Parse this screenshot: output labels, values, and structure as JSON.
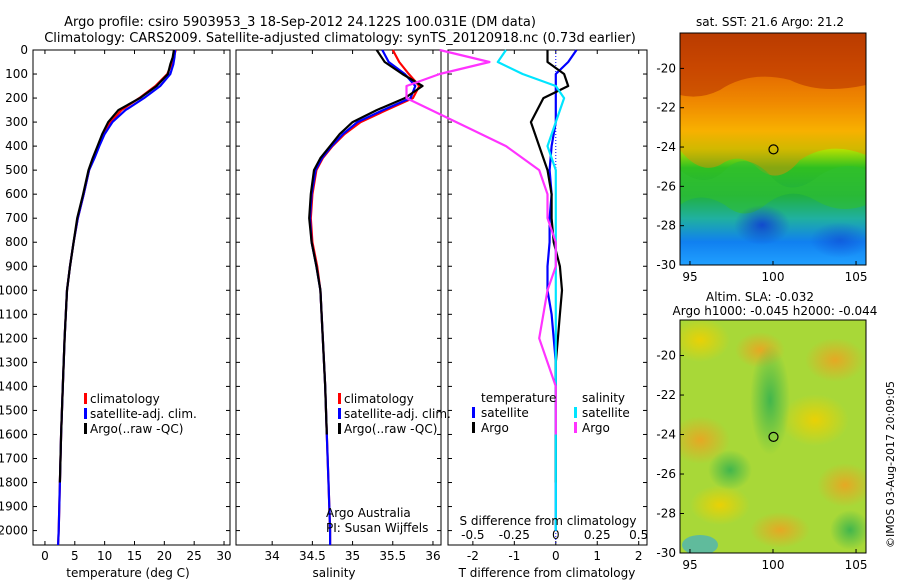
{
  "title_line1": "Argo profile: csiro 5903953_3 18-Sep-2012 24.122S 100.031E (DM data)",
  "title_line2": "Climatology: CARS2009. Satellite-adjusted climatology: synTS_20120918.nc (0.73d earlier)",
  "watermark": "©IMOS 03-Aug-2017 20:09:05",
  "colors": {
    "climatology": "#ff0000",
    "satellite": "#0000ff",
    "argo": "#000000",
    "satellite_salinity": "#00e5ff",
    "argo_salinity": "#ff33ff"
  },
  "depth_axis": {
    "ticks": [
      0,
      100,
      200,
      300,
      400,
      500,
      600,
      700,
      800,
      900,
      1000,
      1100,
      1200,
      1300,
      1400,
      1500,
      1600,
      1700,
      1800,
      1900,
      2000
    ],
    "ylim": [
      0,
      2060
    ]
  },
  "legend_main": [
    "climatology",
    "satellite-adj. clim.",
    "Argo(..raw -QC)"
  ],
  "credit_line1": "Argo Australia",
  "credit_line2": "PI: Susan Wijffels",
  "legend_diff": {
    "col1_title": "temperature",
    "col2_title": "salinity",
    "col1_items": [
      "satellite",
      "Argo"
    ],
    "col2_items": [
      "satellite",
      "Argo"
    ]
  },
  "chart_data": [
    {
      "type": "line",
      "panel": "temperature",
      "xlabel": "temperature (deg C)",
      "xlim": [
        -2,
        31
      ],
      "xticks": [
        0,
        5,
        10,
        15,
        20,
        25,
        30
      ],
      "series": [
        {
          "name": "climatology",
          "x": [
            21.9,
            21.6,
            21.2,
            20.5,
            18.5,
            15.8,
            12.8,
            11.0,
            9.8,
            9.0,
            8.2,
            7.4,
            6.5,
            5.5,
            4.8,
            4.2,
            3.7,
            3.3,
            3.0,
            2.7,
            2.5,
            2.3,
            2.2
          ],
          "y": [
            0,
            30,
            60,
            100,
            150,
            200,
            250,
            300,
            350,
            400,
            450,
            500,
            600,
            700,
            800,
            900,
            1000,
            1200,
            1400,
            1600,
            1800,
            2000,
            2060
          ]
        },
        {
          "name": "satellite-adj. clim.",
          "x": [
            21.8,
            21.7,
            21.5,
            21.0,
            19.3,
            16.6,
            13.5,
            11.3,
            10.0,
            9.1,
            8.3,
            7.4,
            6.5,
            5.5,
            4.8,
            4.2,
            3.7,
            3.3,
            3.0,
            2.7,
            2.5,
            2.3,
            2.2
          ],
          "y": [
            0,
            30,
            60,
            100,
            150,
            200,
            250,
            300,
            350,
            400,
            450,
            500,
            600,
            700,
            800,
            900,
            1000,
            1200,
            1400,
            1600,
            1800,
            2000,
            2060
          ]
        },
        {
          "name": "Argo",
          "x": [
            21.6,
            21.4,
            21.0,
            20.6,
            18.7,
            15.9,
            12.3,
            10.6,
            9.6,
            8.8,
            8.0,
            7.3,
            6.4,
            5.4,
            4.8,
            4.2,
            3.7,
            3.3,
            3.0,
            2.7,
            2.5
          ],
          "y": [
            0,
            30,
            60,
            100,
            150,
            200,
            250,
            300,
            350,
            400,
            450,
            500,
            600,
            700,
            800,
            900,
            1000,
            1200,
            1400,
            1600,
            1800
          ]
        }
      ]
    },
    {
      "type": "line",
      "panel": "salinity",
      "xlabel": "salinity",
      "xlim": [
        33.55,
        36.1
      ],
      "xticks": [
        34,
        34.5,
        35,
        35.5,
        36
      ],
      "series": [
        {
          "name": "climatology",
          "x": [
            35.5,
            35.58,
            35.7,
            35.83,
            35.75,
            35.42,
            35.1,
            34.9,
            34.75,
            34.63,
            34.55,
            34.5,
            34.48,
            34.5,
            34.56,
            34.6,
            34.63,
            34.66,
            34.68,
            34.7,
            34.72,
            34.72
          ],
          "y": [
            0,
            50,
            100,
            150,
            200,
            250,
            300,
            350,
            400,
            450,
            500,
            600,
            700,
            800,
            900,
            1000,
            1200,
            1400,
            1600,
            1800,
            2000,
            2060
          ]
        },
        {
          "name": "satellite-adj. clim.",
          "x": [
            35.37,
            35.45,
            35.65,
            35.78,
            35.72,
            35.38,
            35.06,
            34.88,
            34.74,
            34.62,
            34.54,
            34.49,
            34.47,
            34.49,
            34.55,
            34.6,
            34.63,
            34.66,
            34.68,
            34.7,
            34.72,
            34.72
          ],
          "y": [
            0,
            50,
            100,
            150,
            200,
            250,
            300,
            350,
            400,
            450,
            500,
            600,
            700,
            800,
            900,
            1000,
            1200,
            1400,
            1600,
            1800,
            2000,
            2060
          ]
        },
        {
          "name": "Argo",
          "x": [
            35.3,
            35.4,
            35.62,
            35.87,
            35.65,
            35.3,
            35.0,
            34.84,
            34.72,
            34.6,
            34.52,
            34.48,
            34.46,
            34.49,
            34.55,
            34.6,
            34.63,
            34.66,
            34.68
          ],
          "y": [
            0,
            50,
            100,
            150,
            200,
            250,
            300,
            350,
            400,
            450,
            500,
            600,
            700,
            800,
            900,
            1000,
            1200,
            1400,
            1600
          ]
        }
      ]
    },
    {
      "type": "line",
      "panel": "difference",
      "xlabel": "T difference from climatology",
      "xlabel_top": "S difference from climatology",
      "xlim": [
        -2.6,
        2.2
      ],
      "xticks": [
        -2,
        -1,
        0,
        1,
        2
      ],
      "xticks_salinity": [
        -0.5,
        -0.25,
        0,
        0.25,
        0.5
      ],
      "series": [
        {
          "name": "temperature satellite",
          "x": [
            0.5,
            0.3,
            0.0,
            0.0,
            0.0,
            0.0,
            -0.1,
            -0.15,
            -0.1,
            -0.15,
            -0.15,
            -0.2,
            -0.2,
            -0.1,
            -0.05,
            0.0,
            0.0,
            0.0,
            0.0,
            0.0
          ],
          "y": [
            0,
            50,
            100,
            150,
            200,
            300,
            400,
            500,
            600,
            700,
            800,
            900,
            1000,
            1100,
            1200,
            1300,
            1400,
            1600,
            1800,
            2000
          ]
        },
        {
          "name": "temperature Argo",
          "x": [
            -0.2,
            -0.2,
            0.2,
            0.3,
            -0.3,
            -0.6,
            -0.4,
            -0.2,
            -0.1,
            -0.1,
            -0.05,
            0.1,
            0.15,
            0.1,
            0.05,
            0.0,
            0.0,
            0.0,
            0.0
          ],
          "y": [
            0,
            50,
            100,
            150,
            200,
            300,
            400,
            500,
            600,
            700,
            800,
            900,
            1000,
            1100,
            1200,
            1300,
            1400,
            1600,
            1800
          ]
        },
        {
          "name": "salinity satellite",
          "x": [
            -0.3,
            -0.35,
            -0.2,
            0.0,
            0.05,
            0.0,
            -0.05,
            0.0,
            0.0,
            0.0,
            0.0,
            0.0,
            0.0,
            0.0,
            0.0,
            0.0,
            0.0,
            0.0
          ],
          "y": [
            0,
            50,
            100,
            150,
            200,
            300,
            400,
            500,
            600,
            700,
            800,
            900,
            1000,
            1200,
            1400,
            1600,
            1800,
            2000
          ]
        },
        {
          "name": "salinity Argo",
          "x": [
            -0.7,
            -0.4,
            -0.7,
            -0.9,
            -0.9,
            -0.6,
            -0.3,
            -0.1,
            -0.05,
            -0.05,
            0.0,
            0.0,
            -0.05,
            -0.1,
            -0.05,
            0.0,
            0.0
          ],
          "y": [
            0,
            50,
            100,
            150,
            200,
            300,
            400,
            500,
            600,
            700,
            800,
            900,
            1000,
            1200,
            1300,
            1400,
            1600
          ]
        }
      ]
    },
    {
      "type": "heatmap",
      "panel": "sst_map",
      "title": "sat. SST: 21.6 Argo: 21.2",
      "xticks": [
        95,
        100,
        105
      ],
      "yticks": [
        -20,
        -22,
        -24,
        -26,
        -28,
        -30
      ],
      "xlim": [
        94.4,
        105.6
      ],
      "ylim": [
        -30,
        -18.2
      ],
      "marker": {
        "lon": 100.03,
        "lat": -24.12
      }
    },
    {
      "type": "heatmap",
      "panel": "sla_map",
      "title_line1": "Altim. SLA: -0.032",
      "title_line2": "Argo h1000: -0.045 h2000: -0.044",
      "xticks": [
        95,
        100,
        105
      ],
      "yticks": [
        -20,
        -22,
        -24,
        -26,
        -28,
        -30
      ],
      "xlim": [
        94.4,
        105.6
      ],
      "ylim": [
        -30,
        -18.2
      ],
      "marker": {
        "lon": 100.03,
        "lat": -24.12
      }
    }
  ]
}
